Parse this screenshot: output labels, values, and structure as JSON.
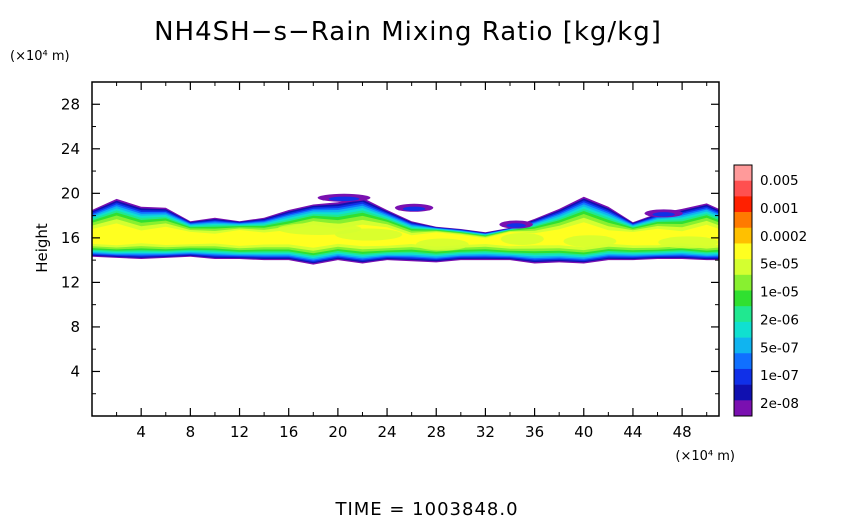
{
  "chart_data": {
    "type": "heatmap",
    "title": "NH4SH−s−Rain Mixing Ratio [kg/kg]",
    "xlabel": "",
    "x_unit_label": "(×10⁴ m)",
    "ylabel": "Height",
    "y_unit_label": "(×10⁴ m)",
    "xlim": [
      0,
      51
    ],
    "ylim": [
      0,
      30
    ],
    "x_ticks": [
      4,
      8,
      12,
      16,
      20,
      24,
      28,
      32,
      36,
      40,
      44,
      48
    ],
    "x_tick_labels": [
      "4",
      "8",
      "12",
      "16",
      "20",
      "24",
      "28",
      "32",
      "36",
      "40",
      "44",
      "48"
    ],
    "y_ticks": [
      4,
      8,
      12,
      16,
      20,
      24,
      28
    ],
    "y_tick_labels": [
      "4",
      "8",
      "12",
      "16",
      "20",
      "24",
      "28"
    ],
    "colorbar": {
      "labels": [
        "0.005",
        "0.001",
        "0.0002",
        "5e-05",
        "1e-05",
        "2e-06",
        "5e-07",
        "1e-07",
        "2e-08"
      ],
      "colors": [
        "#ff9a9a",
        "#ff5050",
        "#ff2000",
        "#ff7a00",
        "#ffc000",
        "#ffff20",
        "#d4ff30",
        "#88f030",
        "#30e030",
        "#20e890",
        "#10e0d0",
        "#10b4f0",
        "#1070ff",
        "#1030e8",
        "#1010b0",
        "#7a10b0"
      ]
    },
    "cloud_layer": {
      "x": [
        0,
        2,
        4,
        6,
        8,
        10,
        12,
        14,
        16,
        18,
        20,
        22,
        24,
        26,
        28,
        30,
        32,
        34,
        36,
        38,
        40,
        42,
        44,
        46,
        48,
        50,
        51
      ],
      "base": [
        14.3,
        14.2,
        14.1,
        14.2,
        14.3,
        14.1,
        14.1,
        14.0,
        14.0,
        13.6,
        14.0,
        13.7,
        14.0,
        13.9,
        13.8,
        14.0,
        14.0,
        14.0,
        13.7,
        13.8,
        13.7,
        14.0,
        14.0,
        14.1,
        14.1,
        14.0,
        14.0
      ],
      "top": [
        18.5,
        19.5,
        18.8,
        18.7,
        17.5,
        17.8,
        17.5,
        17.8,
        18.5,
        19.0,
        19.2,
        19.6,
        18.5,
        17.5,
        17.0,
        16.8,
        16.5,
        16.9,
        17.7,
        18.6,
        19.7,
        18.8,
        17.4,
        18.2,
        18.6,
        19.1,
        18.6
      ],
      "core_min": 15.0,
      "core_max": 17.0
    },
    "annotation": "TIME = 1003848.0"
  }
}
